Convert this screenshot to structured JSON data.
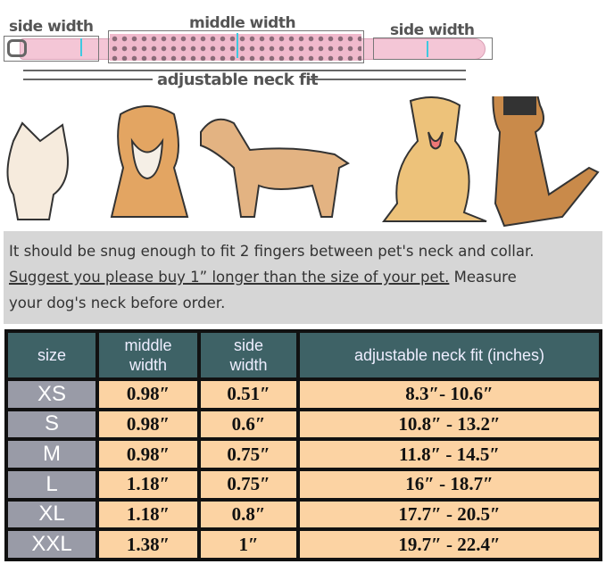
{
  "diagram": {
    "side_width_left": "side width",
    "middle_width": "middle width",
    "side_width_right": "side width",
    "adjustable_neck_fit": "adjustable neck fit"
  },
  "note": {
    "line1": "It should be snug enough to fit 2 fingers between pet's neck and collar.",
    "line2_underlined": "Suggest you please buy 1” longer than the size of your pet.",
    "line2_rest": " Measure",
    "line3": "your dog's neck before order."
  },
  "colors": {
    "header": "#3e6266",
    "size_cell": "#999ba7",
    "value_cell": "#fcd3a3",
    "collar": "#f4c6d6",
    "arrow": "#3ec9e0"
  },
  "table": {
    "headers": [
      "size",
      "middle width",
      "side width",
      "adjustable neck fit (inches)"
    ],
    "rows": [
      [
        "XS",
        "0.98″",
        "0.51″",
        "8.3″- 10.6″"
      ],
      [
        "S",
        "0.98″",
        "0.6″",
        "10.8″ - 13.2″"
      ],
      [
        "M",
        "0.98″",
        "0.75″",
        "11.8″ - 14.5″"
      ],
      [
        "L",
        "1.18″",
        "0.75″",
        "16″ - 18.7″"
      ],
      [
        "XL",
        "1.18″",
        "0.8″",
        "17.7″ - 20.5″"
      ],
      [
        "XXL",
        "1.38″",
        "1″",
        "19.7″ - 22.4″"
      ]
    ]
  }
}
